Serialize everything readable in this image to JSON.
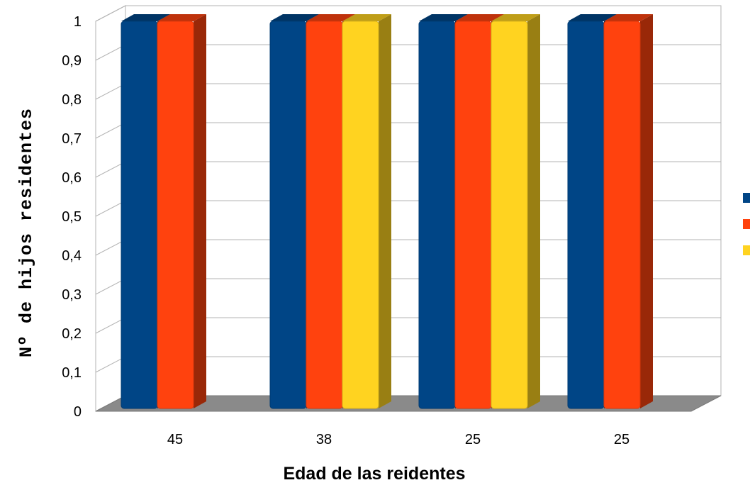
{
  "chart_data": {
    "type": "bar",
    "categories": [
      "45",
      "38",
      "25",
      "25"
    ],
    "series": [
      {
        "values": [
          1,
          1,
          1,
          1
        ],
        "color": "#004586"
      },
      {
        "values": [
          1,
          1,
          1,
          1
        ],
        "color": "#ff420e"
      },
      {
        "values": [
          null,
          1,
          1,
          null
        ],
        "color": "#ffd320"
      }
    ],
    "xlabel": "Edad de las reidentes",
    "ylabel": "Nº de hijos residentes",
    "ylim": [
      0,
      1
    ],
    "yticks": [
      "0",
      "0,1",
      "0,2",
      "0,3",
      "0,4",
      "0,5",
      "0,6",
      "0,7",
      "0,8",
      "0,9",
      "1"
    ],
    "grid": true,
    "three_d": true,
    "legend_position": "right"
  }
}
